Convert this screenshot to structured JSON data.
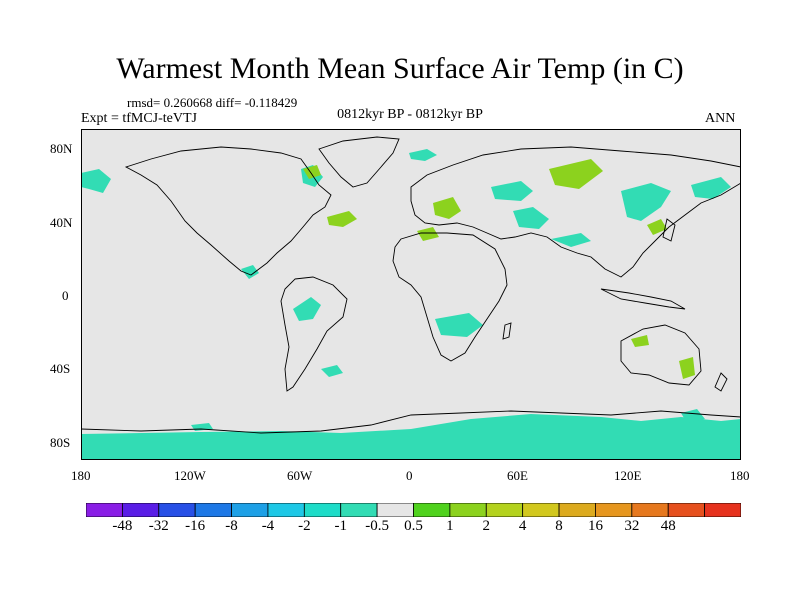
{
  "title": "Warmest Month Mean Surface Air Temp (in C)",
  "stats_line": "rmsd= 0.260668 diff= -0.118429",
  "experiment_label": "Expt = tfMCJ-teVTJ",
  "period_label": "0812kyr BP - 0812kyr BP",
  "season_label": "ANN",
  "map": {
    "background_color": "#e6e6e6",
    "coastline_color": "#000000",
    "lat_labels": [
      "80N",
      "40N",
      "0",
      "40S",
      "80S"
    ],
    "lon_labels": [
      "180",
      "120W",
      "60W",
      "0",
      "60E",
      "120E",
      "180"
    ]
  },
  "colorbar": {
    "colors": [
      "#8a1ee6",
      "#5a1ee6",
      "#2850e6",
      "#1e78e6",
      "#1ea0e6",
      "#1ec8e6",
      "#1edcc8",
      "#32dcb4",
      "#e6e6e6",
      "#50d21e",
      "#8cd21e",
      "#b4d21e",
      "#d2c81e",
      "#dcaa1e",
      "#e6961e",
      "#e6781e",
      "#e6501e",
      "#e6321e"
    ],
    "labels": [
      "-48",
      "-32",
      "-16",
      "-8",
      "-4",
      "-2",
      "-1",
      "-0.5",
      "0.5",
      "1",
      "2",
      "4",
      "8",
      "16",
      "32",
      "48"
    ]
  }
}
